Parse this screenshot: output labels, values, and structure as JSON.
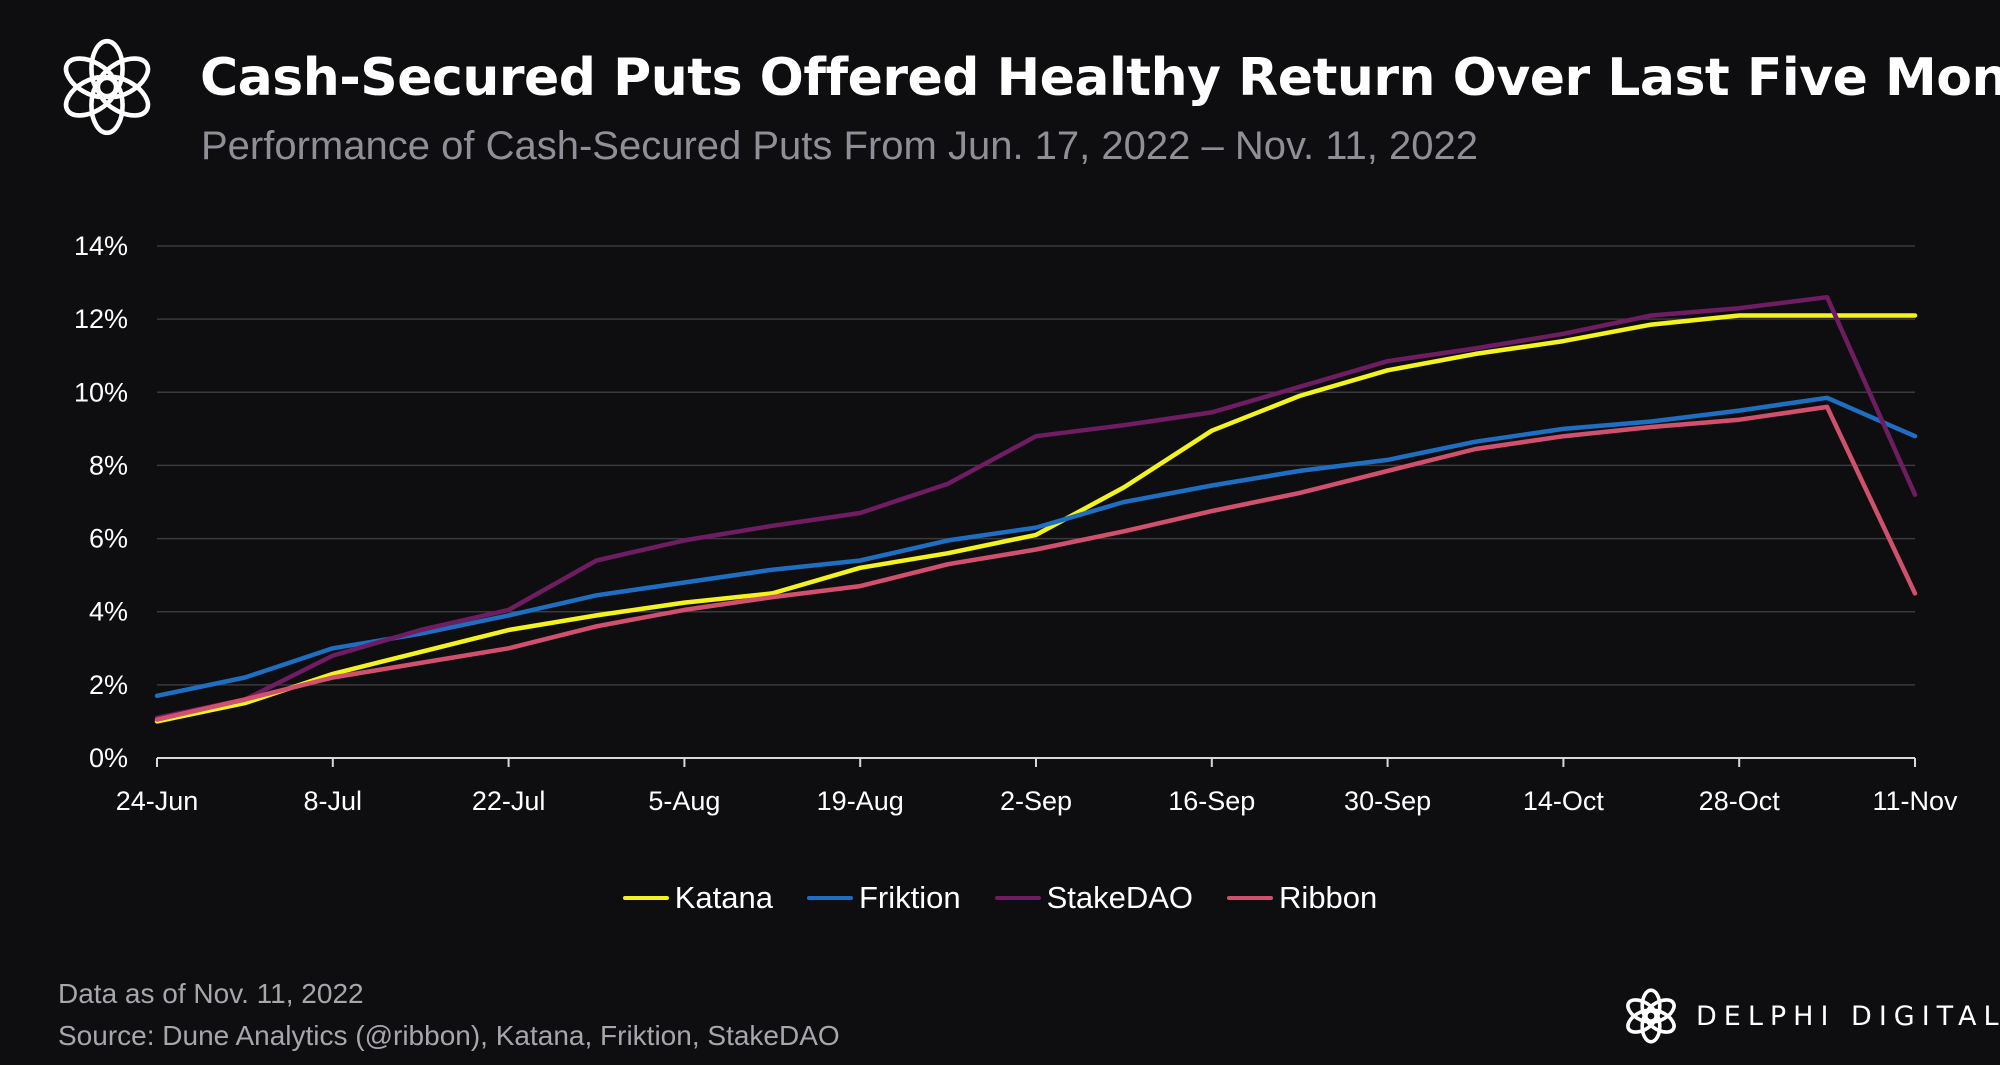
{
  "header": {
    "title": "Cash-Secured Puts Offered Healthy Return Over Last Five Months",
    "subtitle": "Performance of Cash-Secured Puts From Jun. 17, 2022 – Nov. 11, 2022"
  },
  "footer": {
    "note": "Data as of Nov. 11, 2022",
    "source": "Source: Dune Analytics (@ribbon), Katana, Friktion, StakeDAO",
    "brand": "DELPHI DIGITAL"
  },
  "chart_data": {
    "type": "line",
    "x_dates": [
      "2022-06-24",
      "2022-07-01",
      "2022-07-08",
      "2022-07-15",
      "2022-07-22",
      "2022-07-29",
      "2022-08-05",
      "2022-08-12",
      "2022-08-19",
      "2022-08-26",
      "2022-09-02",
      "2022-09-09",
      "2022-09-16",
      "2022-09-23",
      "2022-09-30",
      "2022-10-07",
      "2022-10-14",
      "2022-10-21",
      "2022-10-28",
      "2022-11-04",
      "2022-11-11"
    ],
    "x_tick_labels": [
      "24-Jun",
      "8-Jul",
      "22-Jul",
      "5-Aug",
      "19-Aug",
      "2-Sep",
      "16-Sep",
      "30-Sep",
      "14-Oct",
      "28-Oct",
      "11-Nov"
    ],
    "y_tick_labels": [
      "0%",
      "2%",
      "4%",
      "6%",
      "8%",
      "10%",
      "12%",
      "14%"
    ],
    "ylim": [
      0,
      14
    ],
    "y_unit": "%",
    "grid": "horizontal",
    "legend_position": "bottom-center",
    "series": [
      {
        "name": "Katana",
        "color": "#f3f321",
        "values": [
          1.0,
          1.5,
          2.3,
          2.9,
          3.5,
          3.9,
          4.25,
          4.5,
          5.2,
          5.6,
          6.1,
          7.4,
          8.95,
          9.9,
          10.6,
          11.05,
          11.4,
          11.85,
          12.1,
          12.1,
          12.1
        ]
      },
      {
        "name": "Friktion",
        "color": "#1e6ec2",
        "values": [
          1.7,
          2.2,
          3.0,
          3.4,
          3.9,
          4.45,
          4.8,
          5.15,
          5.4,
          5.95,
          6.3,
          7.0,
          7.45,
          7.85,
          8.15,
          8.65,
          9.0,
          9.2,
          9.5,
          9.85,
          8.8
        ]
      },
      {
        "name": "StakeDAO",
        "color": "#6e1d62",
        "values": [
          1.1,
          1.6,
          2.8,
          3.5,
          4.05,
          5.4,
          5.95,
          6.35,
          6.7,
          7.5,
          8.8,
          9.1,
          9.45,
          10.15,
          10.85,
          11.2,
          11.6,
          12.1,
          12.3,
          12.6,
          7.2
        ]
      },
      {
        "name": "Ribbon",
        "color": "#d0506d",
        "values": [
          1.05,
          1.6,
          2.2,
          2.6,
          3.0,
          3.6,
          4.05,
          4.4,
          4.7,
          5.3,
          5.7,
          6.2,
          6.75,
          7.25,
          7.85,
          8.45,
          8.8,
          9.05,
          9.25,
          9.6,
          4.5
        ]
      }
    ]
  }
}
